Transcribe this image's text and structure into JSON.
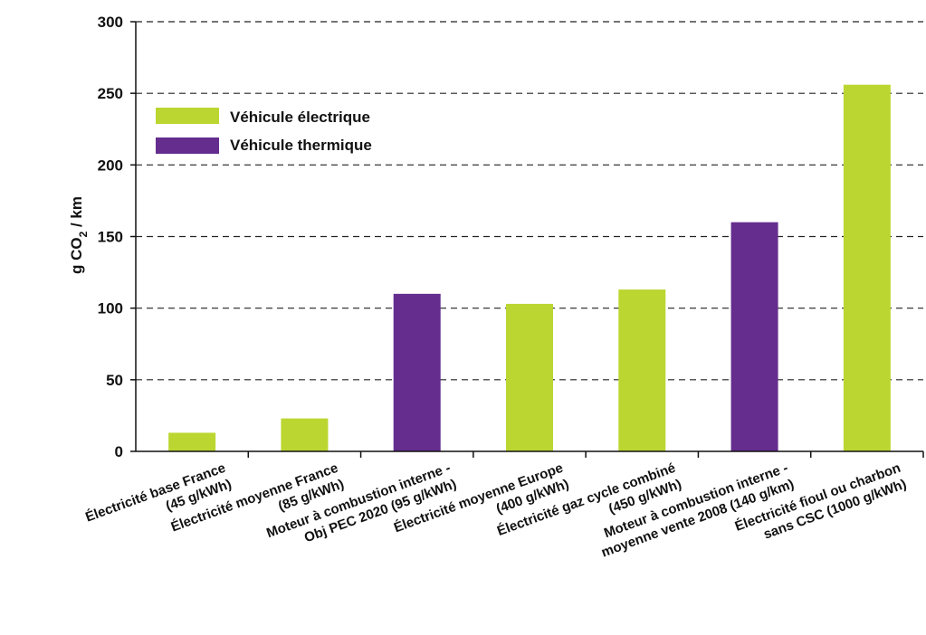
{
  "chart_data": {
    "type": "bar",
    "ylabel": "g CO2 / km",
    "ylim": [
      0,
      300
    ],
    "yticks": [
      "0",
      "50",
      "100",
      "150",
      "200",
      "250",
      "300"
    ],
    "grid": "horizontal-dashed",
    "legend_position": "top-left",
    "categories": [
      [
        "Électricité base France",
        "(45 g/kWh)"
      ],
      [
        "Électricité moyenne France",
        "(85 g/kWh)"
      ],
      [
        "Moteur à combustion interne -",
        "Obj PEC 2020 (95 g/kWh)"
      ],
      [
        "Électricité moyenne Europe",
        "(400 g/kWh)"
      ],
      [
        "Électricité gaz cycle combiné",
        "(450 g/kWh)"
      ],
      [
        "Moteur à combustion interne -",
        "moyenne vente 2008 (140 g/km)"
      ],
      [
        "Électricité fioul ou charbon",
        "sans CSC (1000 g/kWh)"
      ]
    ],
    "values": [
      13,
      23,
      110,
      103,
      113,
      160,
      256
    ],
    "series_of_bar": [
      0,
      0,
      1,
      0,
      0,
      1,
      0
    ],
    "series": [
      {
        "name": "Véhicule électrique",
        "color": "#bcd631"
      },
      {
        "name": "Véhicule thermique",
        "color": "#652d8e"
      }
    ]
  }
}
